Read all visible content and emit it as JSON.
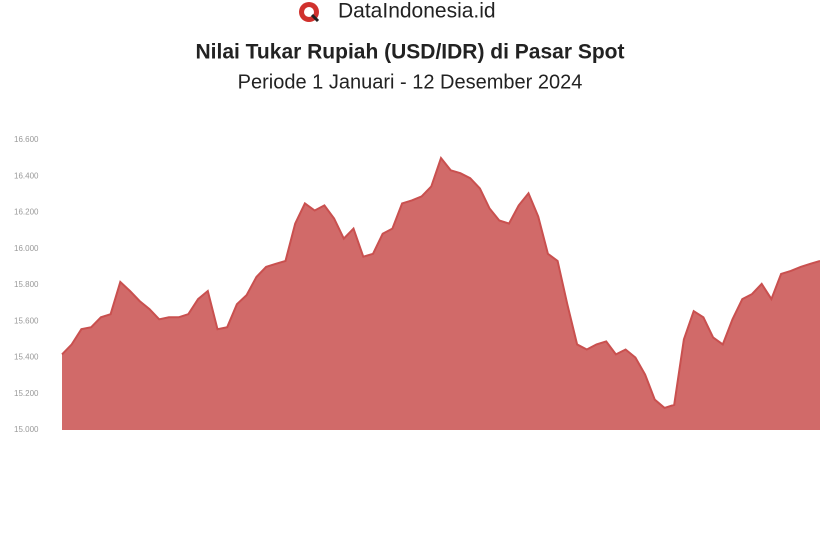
{
  "brand": "DataIndonesia.id",
  "chart_data": {
    "type": "area",
    "title": "Nilai Tukar Rupiah (USD/IDR) di Pasar Spot",
    "subtitle": "Periode 1 Januari - 12 Desember 2024",
    "color": "#c9504f",
    "values": [
      15417,
      15472,
      15556,
      15567,
      15622,
      15639,
      15817,
      15767,
      15711,
      15667,
      15611,
      15622,
      15622,
      15639,
      15722,
      15767,
      15556,
      15567,
      15694,
      15744,
      15844,
      15900,
      15917,
      15933,
      16139,
      16250,
      16211,
      16239,
      16167,
      16056,
      16111,
      15956,
      15972,
      16083,
      16111,
      16250,
      16267,
      16289,
      16344,
      16500,
      16433,
      16417,
      16389,
      16333,
      16222,
      16156,
      16139,
      16239,
      16306,
      16178,
      15972,
      15933,
      15694,
      15472,
      15444,
      15472,
      15489,
      15417,
      15444,
      15400,
      15306,
      15167,
      15122,
      15139,
      15500,
      15656,
      15622,
      15511,
      15472,
      15611,
      15722,
      15750,
      15806,
      15722,
      15861,
      15878,
      15900,
      15917,
      15933
    ],
    "ylim": [
      15000,
      16600
    ],
    "yticks": [
      {
        "value": 15000,
        "label": "15.000"
      },
      {
        "value": 15200,
        "label": "15.200"
      },
      {
        "value": 15400,
        "label": "15.400"
      },
      {
        "value": 15600,
        "label": "15.600"
      },
      {
        "value": 15800,
        "label": "15.800"
      },
      {
        "value": 16000,
        "label": "16.000"
      },
      {
        "value": 16200,
        "label": "16.200"
      },
      {
        "value": 16400,
        "label": "16.400"
      },
      {
        "value": 16600,
        "label": "16.600"
      }
    ]
  }
}
